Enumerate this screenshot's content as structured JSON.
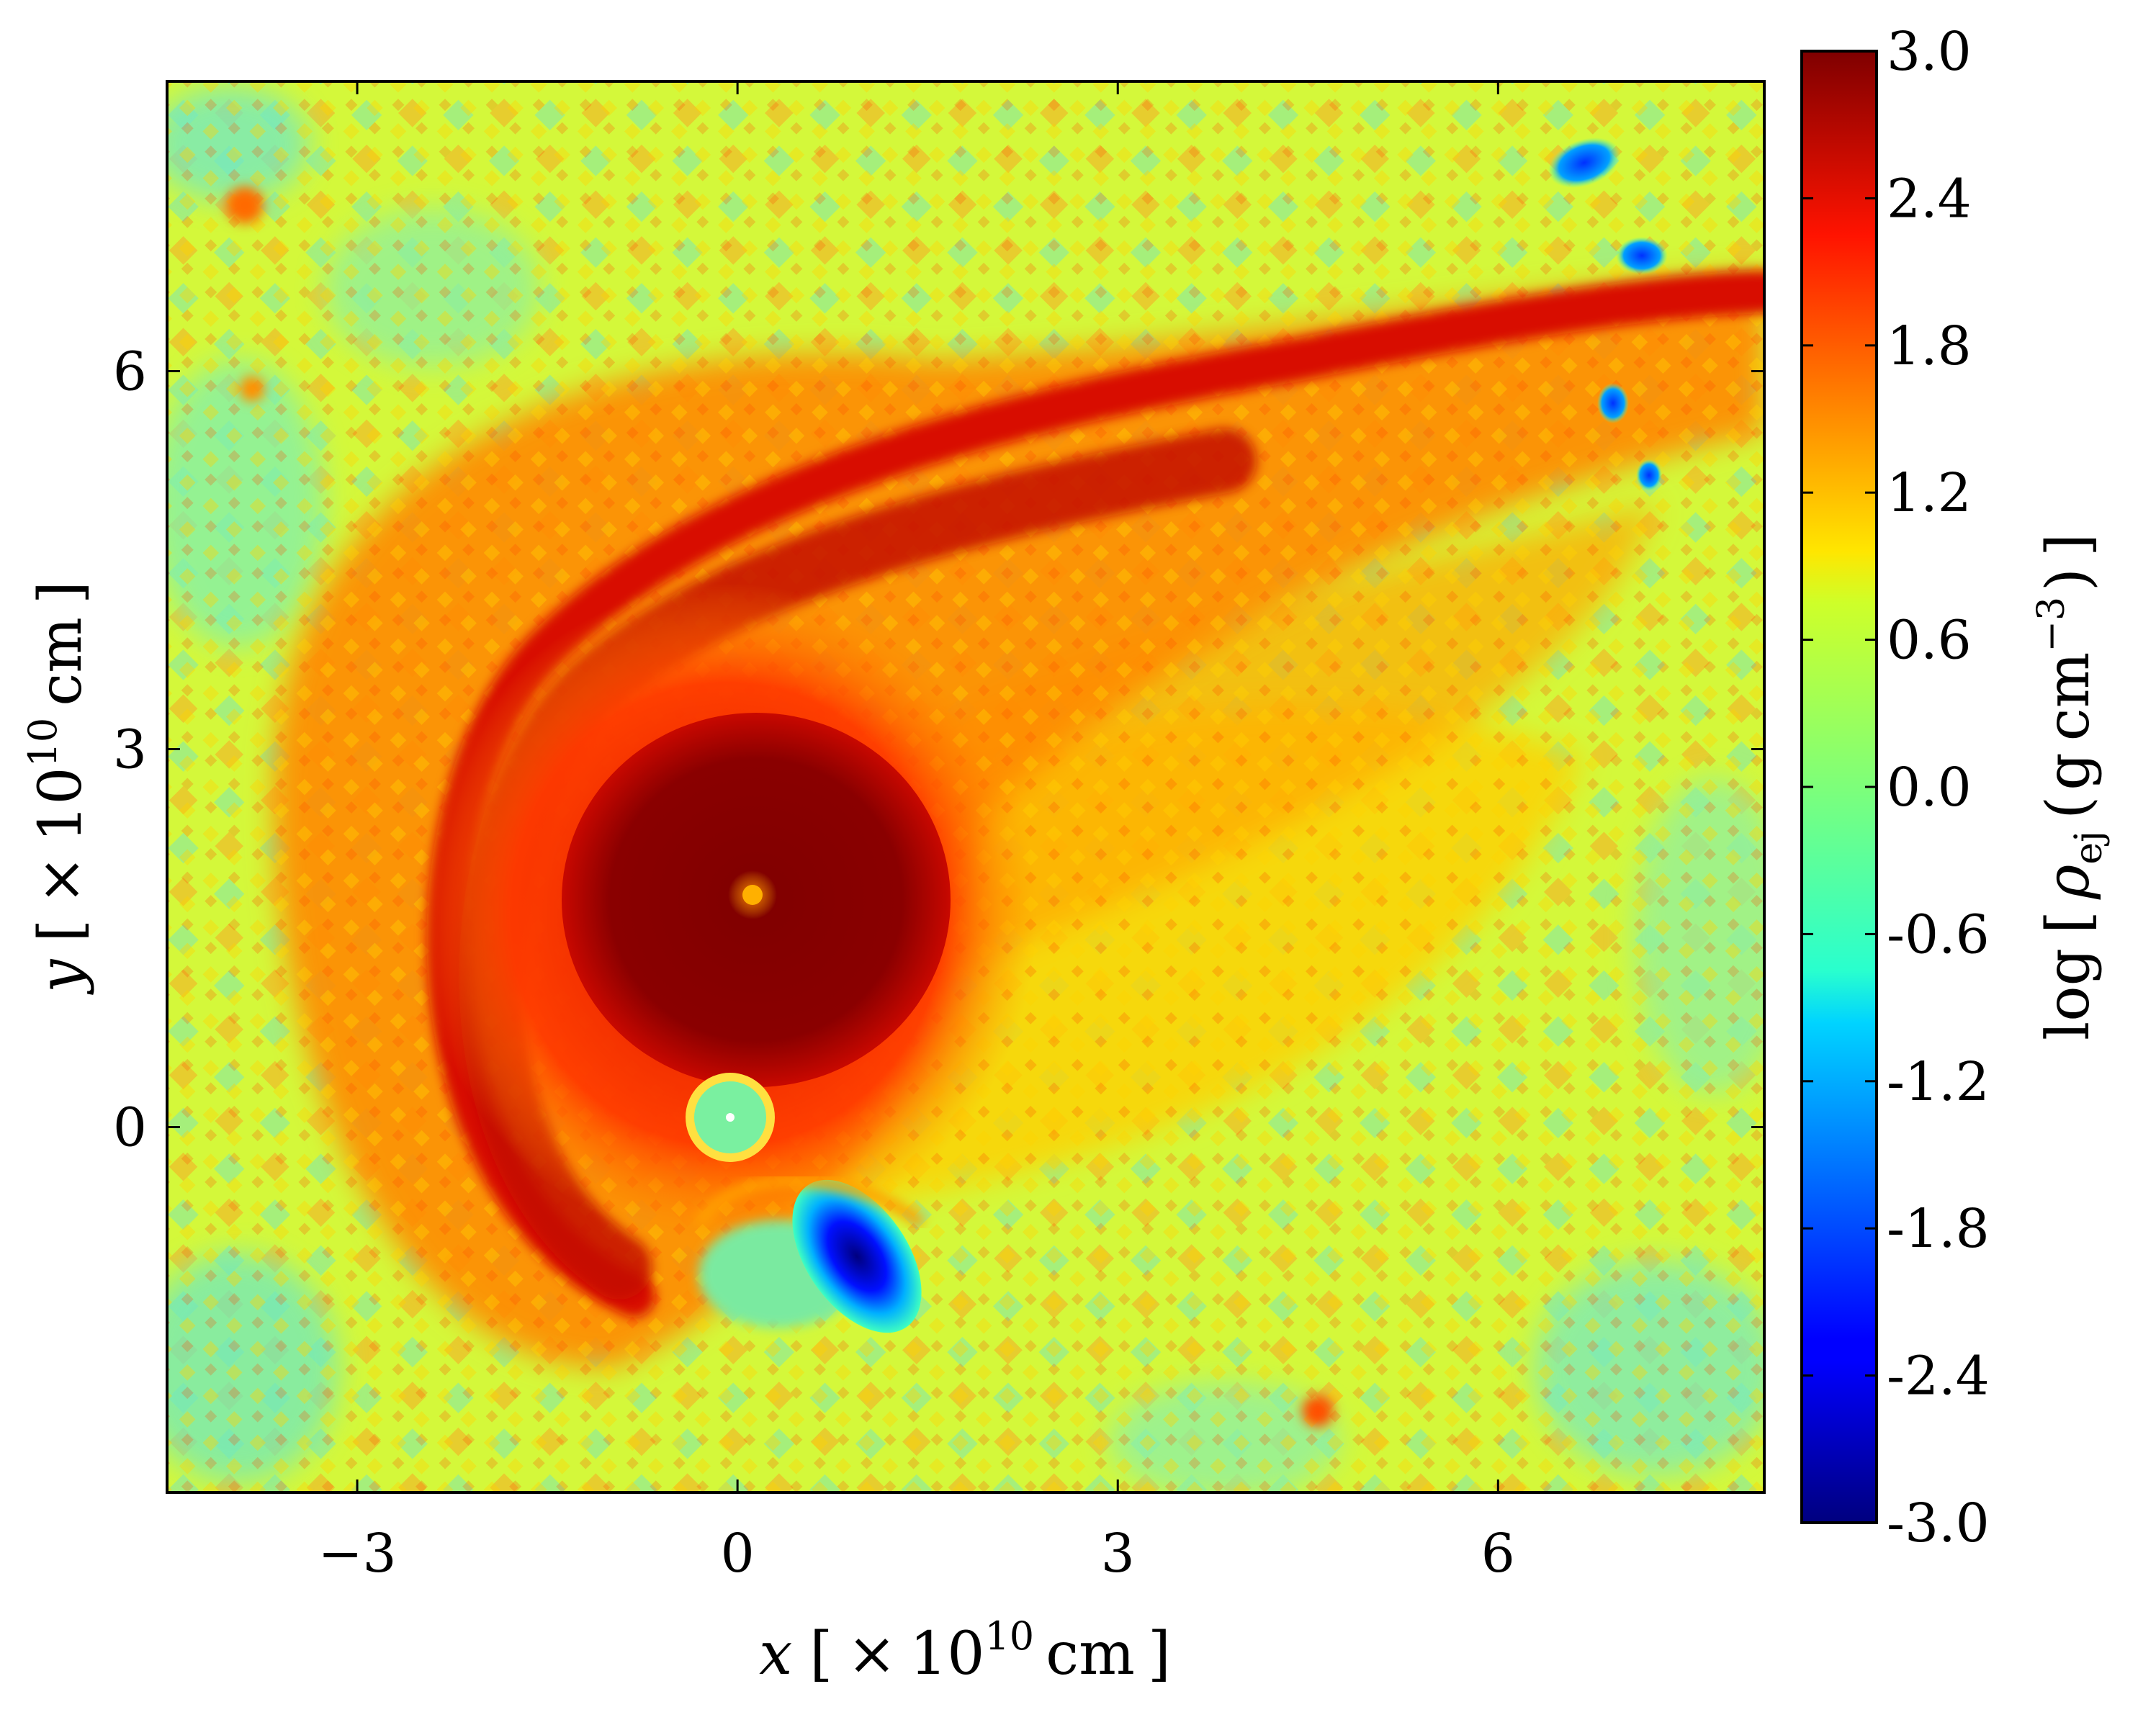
{
  "chart_data": {
    "type": "heatmap",
    "title": "",
    "xlabel": "x [ ×10^10 cm ]",
    "ylabel": "y [ ×10^10 cm ]",
    "xlim": [
      -4.5,
      8.1
    ],
    "ylim": [
      -2.9,
      8.3
    ],
    "x_ticks": [
      "−3",
      "0",
      "3",
      "6"
    ],
    "x_tick_values": [
      -3,
      0,
      3,
      6
    ],
    "y_ticks": [
      "0",
      "3",
      "6"
    ],
    "y_tick_values": [
      0,
      3,
      6
    ],
    "colorbar": {
      "label": "log [ ρ_ej (g cm^−3) ]",
      "range": [
        -3.0,
        3.0
      ],
      "colormap": "jet",
      "ticks": [
        "3.0",
        "2.4",
        "1.8",
        "1.2",
        "0.6",
        "0.0",
        "-0.6",
        "-1.2",
        "-1.8",
        "-2.4",
        "-3.0"
      ],
      "tick_values": [
        3.0,
        2.4,
        1.8,
        1.2,
        0.6,
        0.0,
        -0.6,
        -1.2,
        -1.8,
        -2.4,
        -3.0
      ]
    },
    "features": {
      "central_dense_region": {
        "x": 0.2,
        "y": 1.7,
        "value": 3.0
      },
      "inner_core_dot": {
        "x": 0.2,
        "y": 1.8,
        "value": 1.5
      },
      "companion_hole": {
        "x": 0.0,
        "y": 0.0,
        "value": 0.0
      },
      "low_density_cavity": {
        "x": 1.0,
        "y": -1.2,
        "value": -3.0
      },
      "spiral_arm_tip": {
        "x": 8.0,
        "y": 6.5,
        "value": 2.4
      },
      "background_level": 0.9
    },
    "grid": false,
    "legend": "none"
  },
  "labels": {
    "x_axis": {
      "main": "x",
      "bracket_open": "[",
      "times": "×",
      "base": "10",
      "exp": "10",
      "unit": "cm",
      "bracket_close": "]"
    },
    "y_axis": {
      "main": "y",
      "bracket_open": "[",
      "times": "×",
      "base": "10",
      "exp": "10",
      "unit": "cm",
      "bracket_close": "]"
    },
    "cbar": {
      "log": "log",
      "open": "[",
      "rho": "ρ",
      "sub": "ej",
      "paren_open": "(",
      "g": "g",
      "cm": "cm",
      "exp": "−3",
      "paren_close": ")",
      "close": "]"
    }
  }
}
